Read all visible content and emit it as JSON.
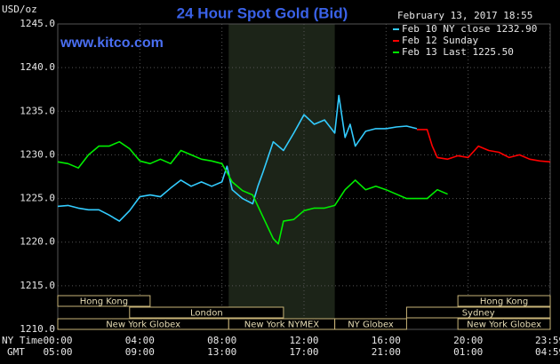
{
  "chart_data": {
    "type": "line",
    "title": "24 Hour Spot Gold (Bid)",
    "y_label": "USD/oz",
    "watermark": "www.kitco.com",
    "timestamp": "February 13, 2017 18:55",
    "x_row_label": "NY Time",
    "x2_row_label": "GMT",
    "xlim": [
      0,
      24
    ],
    "ylim": [
      1210,
      1245
    ],
    "xticks": [
      {
        "value": 0,
        "label": "00:00"
      },
      {
        "value": 4,
        "label": "04:00"
      },
      {
        "value": 8,
        "label": "08:00"
      },
      {
        "value": 12,
        "label": "12:00"
      },
      {
        "value": 16,
        "label": "16:00"
      },
      {
        "value": 20,
        "label": "20:00"
      },
      {
        "value": 23.983,
        "label": "23:59"
      }
    ],
    "x2ticks": [
      "05:00",
      "09:00",
      "13:00",
      "17:00",
      "21:00",
      "01:00",
      "04:59"
    ],
    "yticks": [
      {
        "value": 1210,
        "label": "1210.0"
      },
      {
        "value": 1215,
        "label": "1215.0"
      },
      {
        "value": 1220,
        "label": "1220.0"
      },
      {
        "value": 1225,
        "label": "1225.0"
      },
      {
        "value": 1230,
        "label": "1230.0"
      },
      {
        "value": 1235,
        "label": "1235.0"
      },
      {
        "value": 1240,
        "label": "1240.0"
      },
      {
        "value": 1245,
        "label": "1245.0"
      }
    ],
    "grid": true,
    "legend": "upper right",
    "series": [
      {
        "name": "Feb 10 NY close 1232.90",
        "color": "#33ccff",
        "x": [
          0,
          0.5,
          1,
          1.5,
          2,
          2.5,
          3,
          3.5,
          4,
          4.5,
          5,
          5.5,
          6,
          6.5,
          7,
          7.5,
          8,
          8.25,
          8.5,
          9,
          9.5,
          9.75,
          10,
          10.5,
          11,
          11.5,
          12,
          12.5,
          13,
          13.5,
          13.7,
          14,
          14.25,
          14.5,
          15,
          15.5,
          16,
          16.5,
          17,
          17.5
        ],
        "values": [
          1224.1,
          1224.2,
          1223.9,
          1223.7,
          1223.7,
          1223.1,
          1222.4,
          1223.6,
          1225.2,
          1225.4,
          1225.2,
          1226.2,
          1227.1,
          1226.4,
          1226.9,
          1226.4,
          1226.9,
          1228.7,
          1226.0,
          1225.0,
          1224.4,
          1226.4,
          1228.0,
          1231.5,
          1230.5,
          1232.5,
          1234.6,
          1233.5,
          1234.0,
          1232.5,
          1236.8,
          1232.0,
          1233.5,
          1231.0,
          1232.7,
          1233.0,
          1233.0,
          1233.2,
          1233.3,
          1233.0
        ]
      },
      {
        "name": "Feb 12 Sunday",
        "color": "#ff0000",
        "x": [
          17.5,
          18,
          18.25,
          18.5,
          19,
          19.5,
          20,
          20.5,
          21,
          21.5,
          22,
          22.5,
          23,
          23.5,
          24
        ],
        "values": [
          1232.9,
          1232.9,
          1231.0,
          1229.7,
          1229.5,
          1229.9,
          1229.7,
          1231.0,
          1230.5,
          1230.3,
          1229.7,
          1230.0,
          1229.5,
          1229.3,
          1229.2
        ]
      },
      {
        "name": "Feb 13 Last 1225.50",
        "color": "#00ee00",
        "x": [
          0,
          0.5,
          1,
          1.5,
          2,
          2.5,
          3,
          3.5,
          4,
          4.5,
          5,
          5.5,
          6,
          6.5,
          7,
          7.5,
          8,
          8.5,
          9,
          9.5,
          10,
          10.5,
          10.75,
          11,
          11.5,
          12,
          12.5,
          13,
          13.5,
          14,
          14.5,
          15,
          15.5,
          16,
          16.5,
          17,
          17.5,
          18,
          18.5,
          19
        ],
        "values": [
          1229.2,
          1229.0,
          1228.5,
          1230.0,
          1231.0,
          1231.0,
          1231.5,
          1230.7,
          1229.3,
          1229.0,
          1229.5,
          1229.0,
          1230.5,
          1230.0,
          1229.5,
          1229.3,
          1229.0,
          1226.9,
          1225.9,
          1225.4,
          1222.9,
          1220.4,
          1219.8,
          1222.4,
          1222.6,
          1223.6,
          1223.9,
          1223.9,
          1224.2,
          1226.0,
          1227.1,
          1226.0,
          1226.4,
          1226.0,
          1225.5,
          1225.0,
          1225.0,
          1225.0,
          1226.0,
          1225.5
        ]
      }
    ],
    "sessions": [
      {
        "name": "Hong Kong",
        "start": 0,
        "end": 4.5,
        "row": 0
      },
      {
        "name": "Hong Kong",
        "start": 19.5,
        "end": 24,
        "row": 0
      },
      {
        "name": "London",
        "start": 3.5,
        "end": 11,
        "row": 1
      },
      {
        "name": "Sydney",
        "start": 17,
        "end": 24,
        "row": 1
      },
      {
        "name": "New York Globex",
        "start": 0,
        "end": 8.33,
        "row": 2
      },
      {
        "name": "New York NYMEX",
        "start": 8.33,
        "end": 13.5,
        "row": 2,
        "highlight": true
      },
      {
        "name": "NY Globex",
        "start": 13.5,
        "end": 17,
        "row": 2
      },
      {
        "name": "New York Globex",
        "start": 19.5,
        "end": 24,
        "row": 2
      }
    ]
  }
}
